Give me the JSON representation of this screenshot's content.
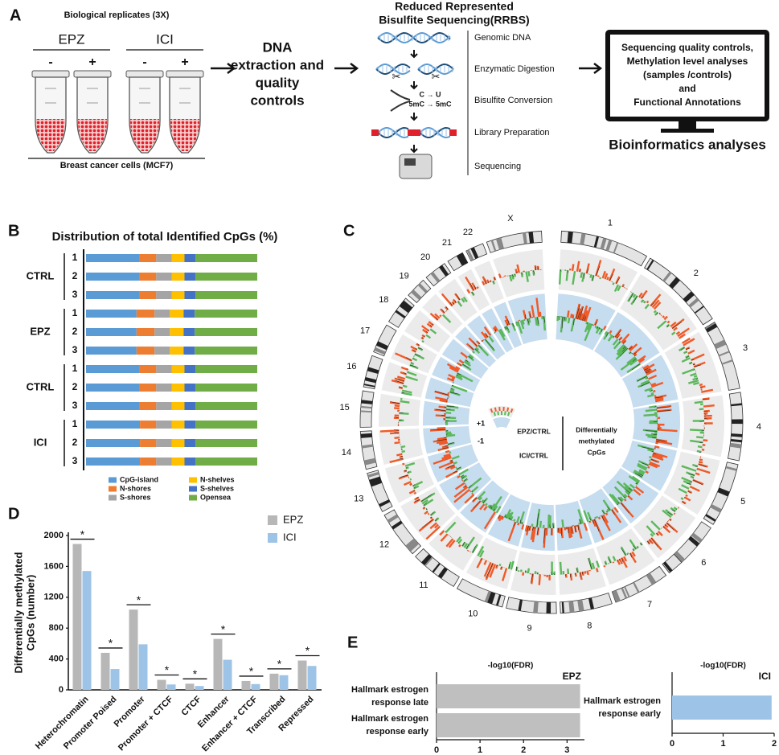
{
  "panel_labels": [
    "A",
    "B",
    "C",
    "D",
    "E"
  ],
  "panel_a": {
    "replicates": "Biological replicates (3X)",
    "groups": [
      {
        "name": "EPZ",
        "signs": [
          "-",
          "+"
        ]
      },
      {
        "name": "ICI",
        "signs": [
          "-",
          "+"
        ]
      }
    ],
    "cells": "Breast cancer cells (MCF7)",
    "extraction": [
      "DNA",
      "extraction and",
      "quality",
      "controls"
    ],
    "rrbs_title": [
      "Reduced Represented",
      "Bisulfite Sequencing(RRBS)"
    ],
    "rrbs_steps": [
      "Genomic DNA",
      "Enzymatic Digestion",
      "Bisulfite Conversion",
      "Library Preparation",
      "Sequencing"
    ],
    "conversion": [
      "C → U",
      "5mC → 5mC"
    ],
    "monitor": [
      "Sequencing quality controls,",
      "Methylation level analyses",
      "(samples /controls)",
      "and",
      "Functional Annotations"
    ],
    "bioinformatics": "Bioinformatics analyses"
  },
  "panel_c": {
    "chromosomes": [
      "1",
      "2",
      "3",
      "4",
      "5",
      "6",
      "7",
      "8",
      "9",
      "10",
      "11",
      "12",
      "13",
      "14",
      "15",
      "16",
      "17",
      "18",
      "19",
      "20",
      "21",
      "22",
      "X"
    ],
    "legend_signs": [
      "+1",
      "-1"
    ],
    "legend_tracks": [
      "EPZ/CTRL",
      "ICI/CTRL"
    ],
    "legend_title": [
      "Differentially",
      "methylated",
      "CpGs"
    ]
  },
  "chart_data": [
    {
      "type": "stacked_bar_h",
      "title": "Distribution of total Identified CpGs (%)",
      "groups": [
        "CTRL",
        "EPZ",
        "CTRL",
        "ICI"
      ],
      "categories": [
        "1",
        "2",
        "3",
        "1",
        "2",
        "3",
        "1",
        "2",
        "3",
        "1",
        "2",
        "3"
      ],
      "xlim": [
        0,
        100
      ],
      "series": [
        {
          "name": "CpG-island",
          "color": "#5b9bd5",
          "values": [
            31,
            31,
            31,
            29.5,
            29.5,
            29.5,
            31,
            31,
            31,
            31.5,
            31.5,
            31.5
          ]
        },
        {
          "name": "N-shores",
          "color": "#ed7d31",
          "values": [
            10,
            10,
            10,
            10.5,
            10.5,
            10.5,
            10,
            10,
            10,
            9.5,
            9.5,
            9.5
          ]
        },
        {
          "name": "S-shores",
          "color": "#a5a5a5",
          "values": [
            9,
            9,
            9,
            9,
            9,
            9,
            9,
            9,
            9,
            9,
            9,
            9
          ]
        },
        {
          "name": "N-shelves",
          "color": "#ffc000",
          "values": [
            7.5,
            7.5,
            7.5,
            8,
            8,
            8,
            7.5,
            7.5,
            7.5,
            7.5,
            7.5,
            7.5
          ]
        },
        {
          "name": "S-shelves",
          "color": "#4472c4",
          "values": [
            6.5,
            6.5,
            6.5,
            6.5,
            6.5,
            6.5,
            6.5,
            6.5,
            6.5,
            6.5,
            6.5,
            6.5
          ]
        },
        {
          "name": "Opensea",
          "color": "#70ad47",
          "values": [
            36,
            36,
            36,
            36.5,
            36.5,
            36.5,
            36,
            36,
            36,
            36,
            36,
            36
          ]
        }
      ]
    },
    {
      "type": "bar",
      "ylabel": [
        "Differentially methylated",
        "CpGs (number)"
      ],
      "categories": [
        "Heterochromatin",
        "Promoter Poised",
        "Promoter",
        "Promoter + CTCF",
        "CTCF",
        "Enhancer",
        "Enhancer + CTCF",
        "Transcribed",
        "Repressed"
      ],
      "series": [
        {
          "name": "EPZ",
          "color": "#b7b7b7",
          "values": [
            1890,
            480,
            1040,
            130,
            80,
            660,
            115,
            210,
            380
          ]
        },
        {
          "name": "ICI",
          "color": "#9dc3e6",
          "values": [
            1540,
            270,
            590,
            70,
            50,
            390,
            75,
            190,
            310
          ]
        }
      ],
      "significance": [
        "*",
        "*",
        "*",
        "*",
        "*",
        "*",
        "*",
        "*",
        "*"
      ],
      "ylim": [
        0,
        2000
      ],
      "yticks": [
        0,
        400,
        800,
        1200,
        1600,
        2000
      ]
    },
    {
      "type": "barh",
      "title": "-log10(FDR)",
      "label": "EPZ",
      "categories": [
        [
          "Hallmark estrogen",
          "response late"
        ],
        [
          "Hallmark estrogen",
          "response early"
        ]
      ],
      "values": [
        3.3,
        3.3
      ],
      "color": "#bfbfbf",
      "xlim": [
        0,
        3.4
      ],
      "xticks": [
        0,
        1,
        2,
        3
      ]
    },
    {
      "type": "barh",
      "title": "-log10(FDR)",
      "label": "ICI",
      "categories": [
        [
          "Hallmark estrogen",
          "response early"
        ]
      ],
      "values": [
        1.95
      ],
      "color": "#9dc3e6",
      "xlim": [
        0,
        2
      ],
      "xticks": [
        0,
        1,
        2
      ]
    }
  ]
}
